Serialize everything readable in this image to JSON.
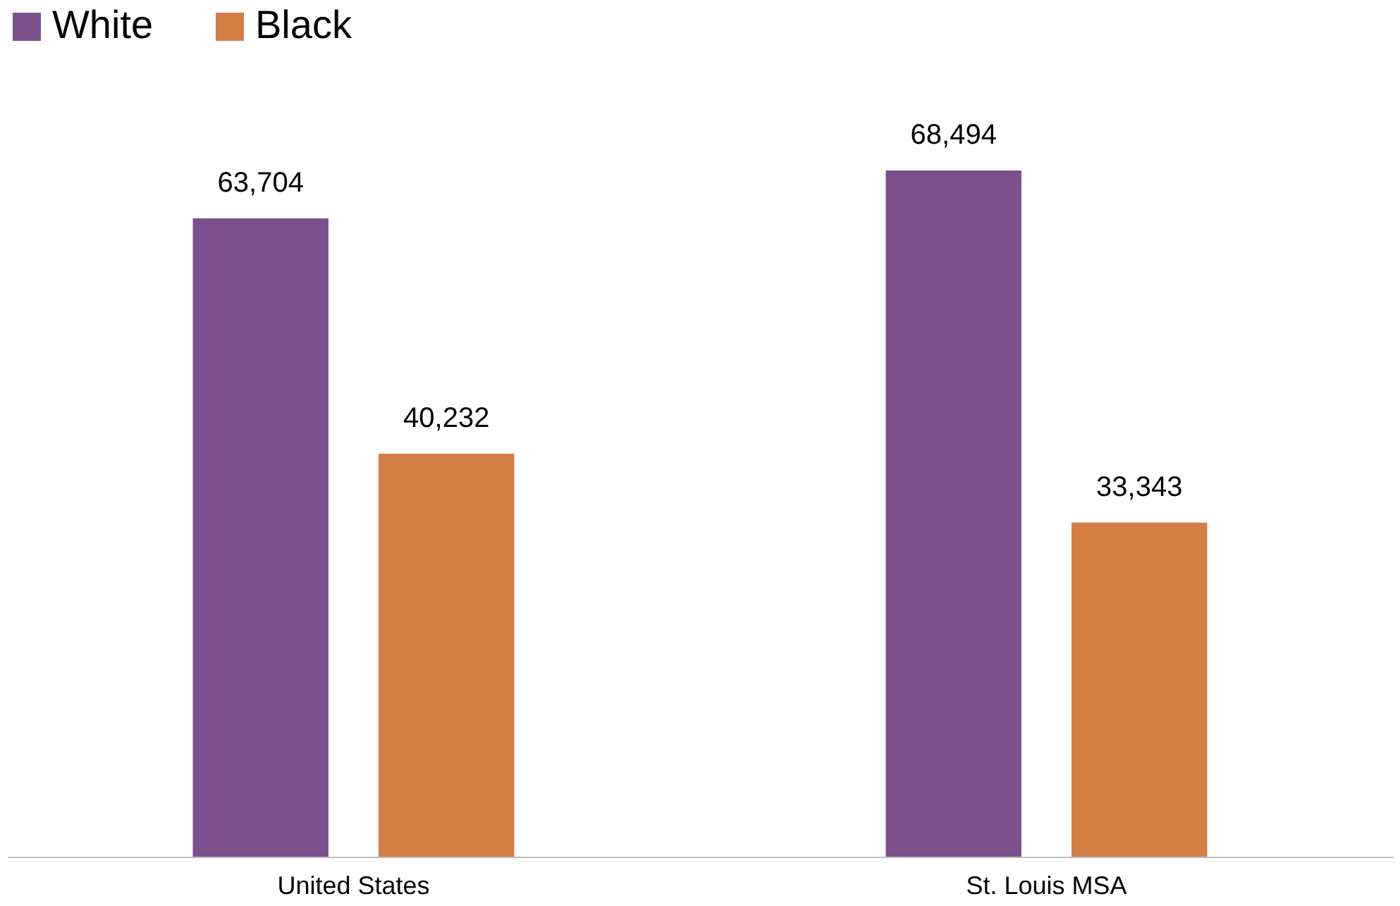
{
  "chart_data": {
    "type": "bar",
    "categories": [
      "United States",
      "St. Louis MSA"
    ],
    "series": [
      {
        "name": "White",
        "color": "#7b4f8c",
        "values": [
          63704,
          68494
        ],
        "value_labels": [
          "63,704",
          "68,494"
        ]
      },
      {
        "name": "Black",
        "color": "#d47d45",
        "values": [
          40232,
          33343
        ],
        "value_labels": [
          "40,232",
          "33,343"
        ]
      }
    ],
    "legend": "top",
    "grid": false
  }
}
